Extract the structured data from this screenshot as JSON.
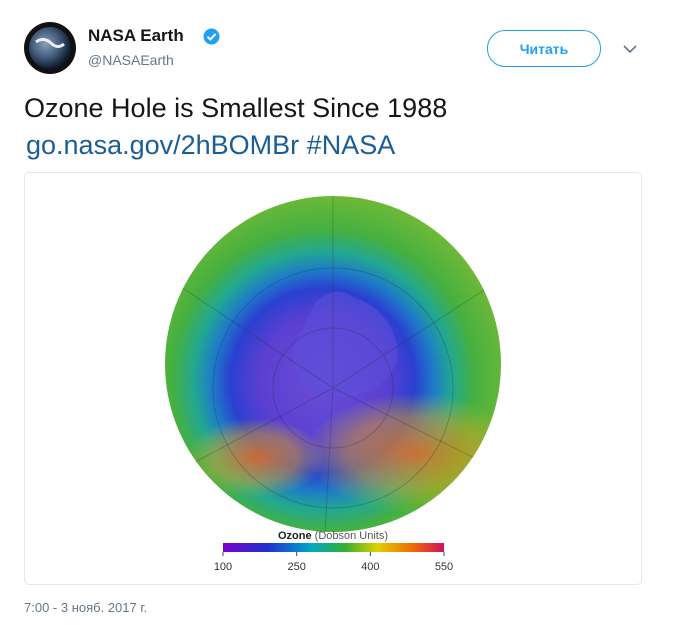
{
  "tweet": {
    "author": {
      "name": "NASA Earth",
      "handle": "@NASAEarth"
    },
    "follow_button": "Читать",
    "text": "Ozone Hole is Smallest Since 1988",
    "links": [
      "go.nasa.gov/2hBOMBr",
      "#NASA"
    ],
    "image": {
      "legend_title": "Ozone",
      "legend_unit": "(Dobson Units)",
      "legend_ticks": [
        100,
        250,
        400,
        550
      ]
    },
    "timestamp": "7:00 - 3 нояб. 2017 г."
  }
}
